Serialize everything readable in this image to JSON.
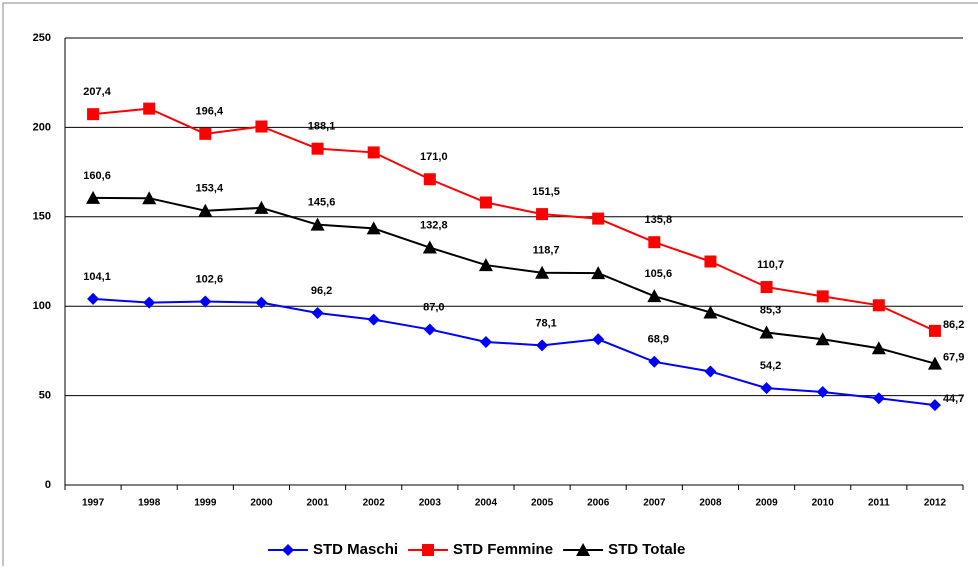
{
  "chart_data": {
    "type": "line",
    "categories": [
      "1997",
      "1998",
      "1999",
      "2000",
      "2001",
      "2002",
      "2003",
      "2004",
      "2005",
      "2006",
      "2007",
      "2008",
      "2009",
      "2010",
      "2011",
      "2012"
    ],
    "series": [
      {
        "name": "STD Maschi",
        "color": "#0000ff",
        "marker": "diamond",
        "values": [
          104.1,
          102,
          102.6,
          102,
          96.2,
          92.5,
          87.0,
          80,
          78.1,
          81.5,
          68.9,
          63.5,
          54.2,
          52,
          48.5,
          44.7
        ],
        "value_labels": [
          "104,1",
          null,
          "102,6",
          null,
          "96,2",
          null,
          "87,0",
          null,
          "78,1",
          null,
          "68,9",
          null,
          "54,2",
          null,
          null,
          "44,7"
        ]
      },
      {
        "name": "STD Femmine",
        "color": "#ff0000",
        "marker": "square",
        "values": [
          207.4,
          210.5,
          196.4,
          200.5,
          188.1,
          186,
          171.0,
          158,
          151.5,
          149,
          135.8,
          125,
          110.7,
          105.5,
          100.5,
          86.2
        ],
        "value_labels": [
          "207,4",
          null,
          "196,4",
          null,
          "188,1",
          null,
          "171,0",
          null,
          "151,5",
          null,
          "135,8",
          null,
          "110,7",
          null,
          null,
          "86,2"
        ]
      },
      {
        "name": "STD Totale",
        "color": "#000000",
        "marker": "triangle",
        "values": [
          160.6,
          160.4,
          153.4,
          155,
          145.6,
          143.5,
          132.8,
          123,
          118.7,
          118.5,
          105.6,
          96.5,
          85.3,
          81.5,
          76.5,
          67.9
        ],
        "value_labels": [
          "160,6",
          null,
          "153,4",
          null,
          "145,6",
          null,
          "132,8",
          null,
          "118,7",
          null,
          "105,6",
          null,
          "85,3",
          null,
          null,
          "67,9"
        ]
      }
    ],
    "ylim": [
      0,
      250
    ],
    "yticks": [
      0,
      50,
      100,
      150,
      200,
      250
    ],
    "grid": true,
    "legend": "bottom"
  }
}
